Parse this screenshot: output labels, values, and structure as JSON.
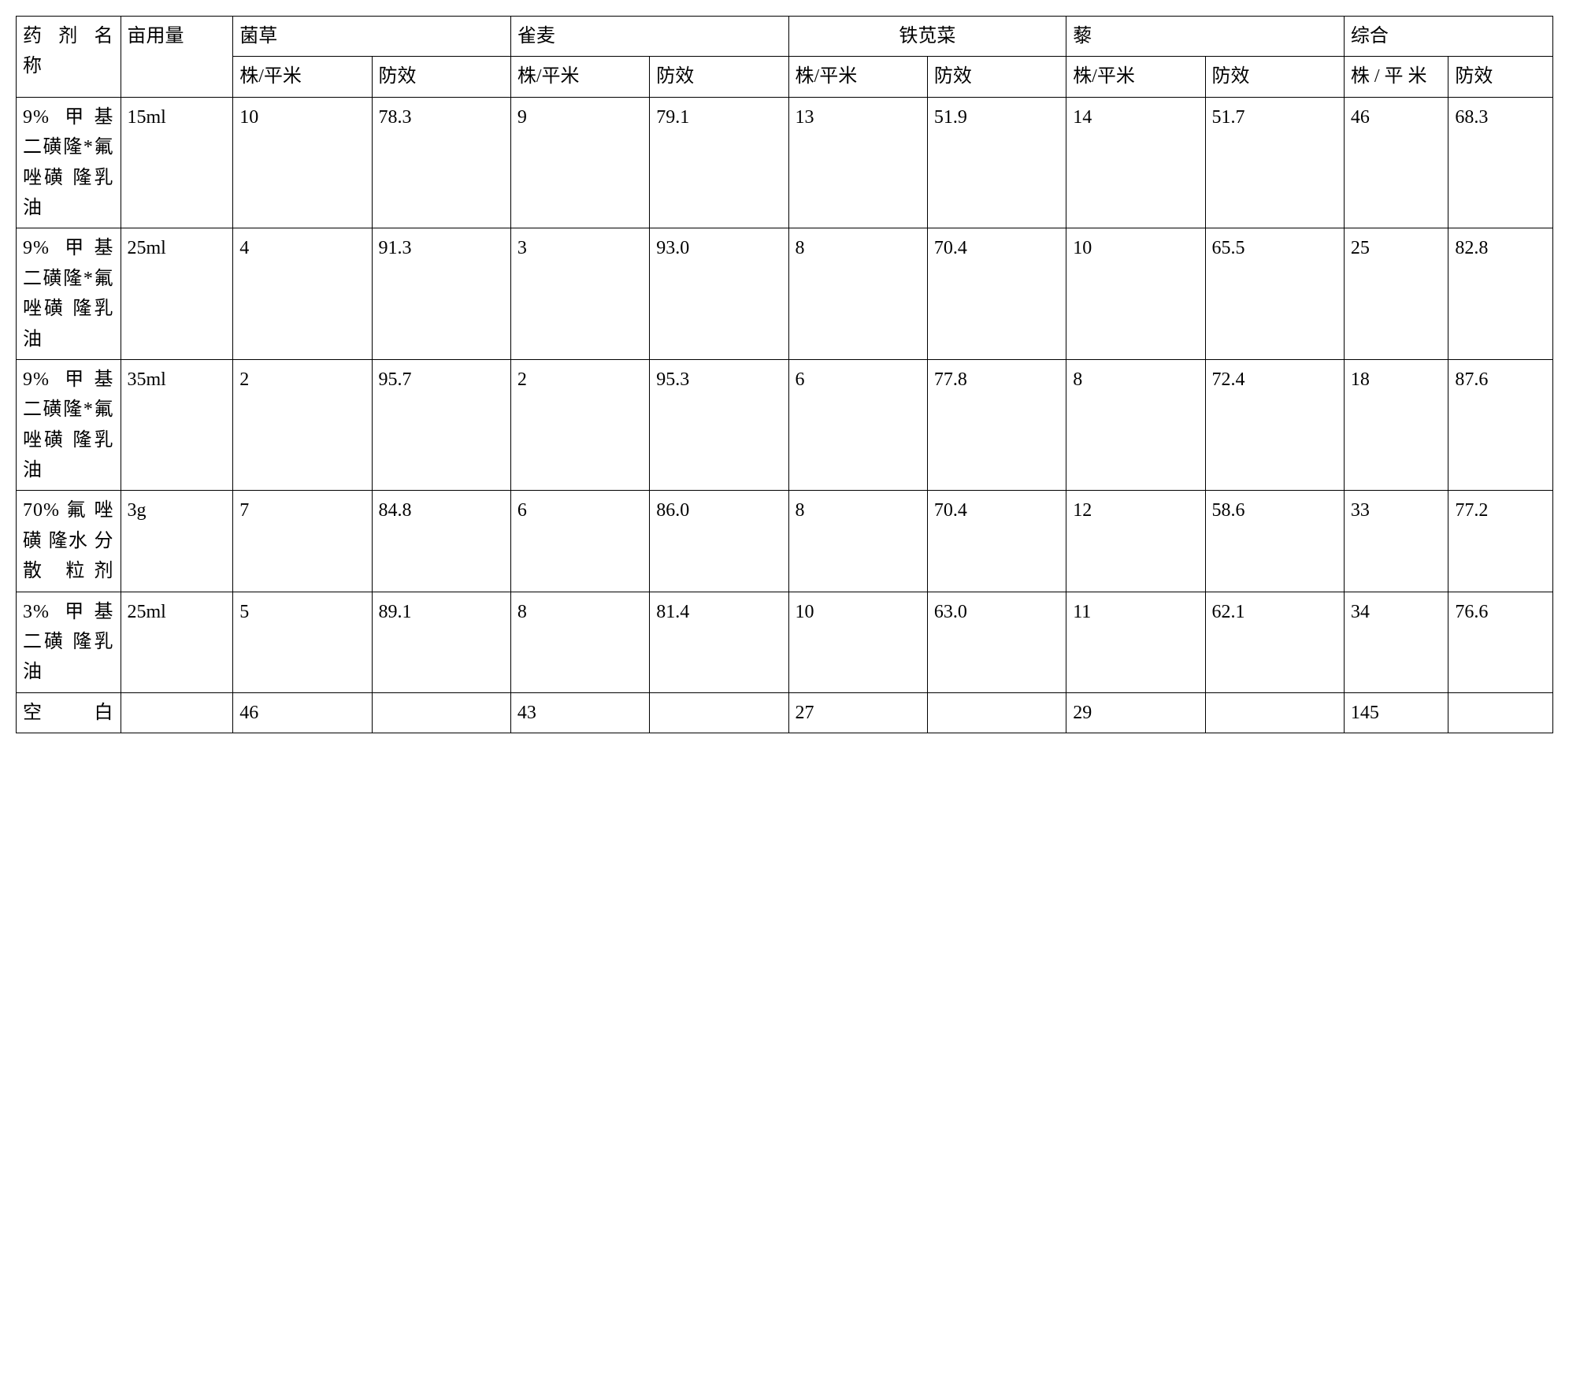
{
  "table": {
    "header": {
      "agent_name": "药 剂 名 称",
      "dose": "亩用量",
      "groups": [
        "菌草",
        "雀麦",
        "铁苋菜",
        "藜",
        "综合"
      ],
      "sub_plants": "株/平米",
      "sub_plants_wrap": "株 / 平 米",
      "sub_efficacy": "防效"
    },
    "rows": [
      {
        "name": "9% 甲基 二磺隆*氟 唑磺 隆乳油",
        "dose": "15ml",
        "vals": [
          "10",
          "78.3",
          "9",
          "79.1",
          "13",
          "51.9",
          "14",
          "51.7",
          "46",
          "68.3"
        ]
      },
      {
        "name": "9% 甲基 二磺隆*氟 唑磺 隆乳油",
        "dose": "25ml",
        "vals": [
          "4",
          "91.3",
          "3",
          "93.0",
          "8",
          "70.4",
          "10",
          "65.5",
          "25",
          "82.8"
        ]
      },
      {
        "name": "9% 甲基 二磺隆*氟 唑磺 隆乳油",
        "dose": "35ml",
        "vals": [
          "2",
          "95.7",
          "2",
          "95.3",
          "6",
          "77.8",
          "8",
          "72.4",
          "18",
          "87.6"
        ]
      },
      {
        "name": "70% 氟 唑磺 隆水 分散 粒剂",
        "dose": "3g",
        "vals": [
          "7",
          "84.8",
          "6",
          "86.0",
          "8",
          "70.4",
          "12",
          "58.6",
          "33",
          "77.2"
        ]
      },
      {
        "name": "3% 甲基 二磺 隆乳油",
        "dose": "25ml",
        "vals": [
          "5",
          "89.1",
          "8",
          "81.4",
          "10",
          "63.0",
          "11",
          "62.1",
          "34",
          "76.6"
        ]
      },
      {
        "name": "空白",
        "dose": "",
        "vals": [
          "46",
          "",
          "43",
          "",
          "27",
          "",
          "29",
          "",
          "145",
          ""
        ]
      }
    ],
    "style": {
      "border_color": "#000000",
      "background_color": "#ffffff",
      "font_family": "SimSun",
      "font_size_pt": 18,
      "cell_text_color": "#000000"
    }
  }
}
